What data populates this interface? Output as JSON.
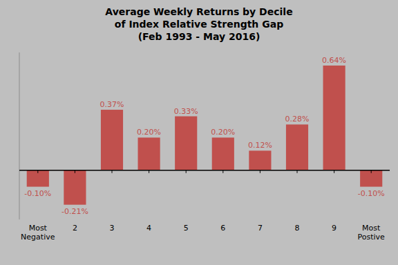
{
  "chart_data": {
    "type": "bar",
    "title": "Average Weekly Returns by Decile\nof Index Relative Strength Gap\n(Feb 1993 - May  2016)",
    "categories": [
      "Most\nNegative",
      "2",
      "3",
      "4",
      "5",
      "6",
      "7",
      "8",
      "9",
      "Most\nPostive"
    ],
    "values": [
      -0.1,
      -0.21,
      0.37,
      0.2,
      0.33,
      0.2,
      0.12,
      0.28,
      0.64,
      -0.1
    ],
    "value_labels": [
      "-0.10%",
      "-0.21%",
      "0.37%",
      "0.20%",
      "0.33%",
      "0.20%",
      "0.12%",
      "0.28%",
      "0.64%",
      "-0.10%"
    ],
    "color": "#c0504d",
    "ylim": [
      -0.3,
      0.72
    ],
    "data_labels": true,
    "tick_labels": "x"
  }
}
